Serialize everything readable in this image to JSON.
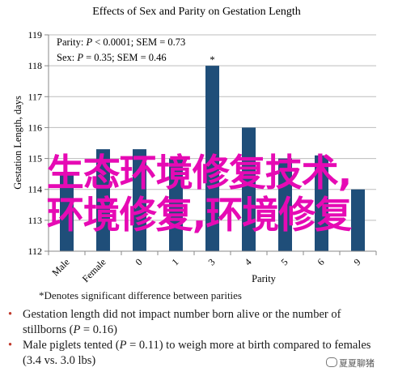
{
  "chart_data": {
    "type": "bar",
    "title": "Effects of Sex and Parity on Gestation Length",
    "xlabel": "Parity",
    "ylabel": "Gestation Length, days",
    "ylim": [
      112,
      119
    ],
    "yticks": [
      "112",
      "113",
      "114",
      "115",
      "116",
      "117",
      "118",
      "119"
    ],
    "categories": [
      "Male",
      "Female",
      "0",
      "1",
      "3",
      "4",
      "5",
      "6",
      "9"
    ],
    "values": [
      114.5,
      115.3,
      115.3,
      115.0,
      118.0,
      116.0,
      115.0,
      115.1,
      114.0
    ],
    "significant": [
      false,
      false,
      false,
      false,
      true,
      false,
      false,
      false,
      false
    ],
    "bar_color": "#1f4e79",
    "grid": true,
    "annotations": {
      "parity_prefix": "Parity: ",
      "parity_rest": " < 0.0001; SEM = 0.73",
      "sex_prefix": "Sex: ",
      "sex_rest": " = 0.35; SEM = 0.46",
      "p_symbol": "P",
      "star": "*"
    }
  },
  "footnote": "*Denotes significant difference between parities",
  "bullets": [
    {
      "pre": "Gestation length did not impact number born alive or the number of stillborns (",
      "p": "P",
      "post": " = 0.16)"
    },
    {
      "pre": "Male piglets tented (",
      "p": "P",
      "post": " = 0.11) to weigh more at birth compared to females (3.4 vs. 3.0 lbs)"
    }
  ],
  "overlay": {
    "line1": "生态环境修复技术,",
    "line2": "环境修复,环境修复"
  },
  "watermark": "夏夏聊猪",
  "bullet_symbol": "•",
  "accent_color": "#c0392b"
}
